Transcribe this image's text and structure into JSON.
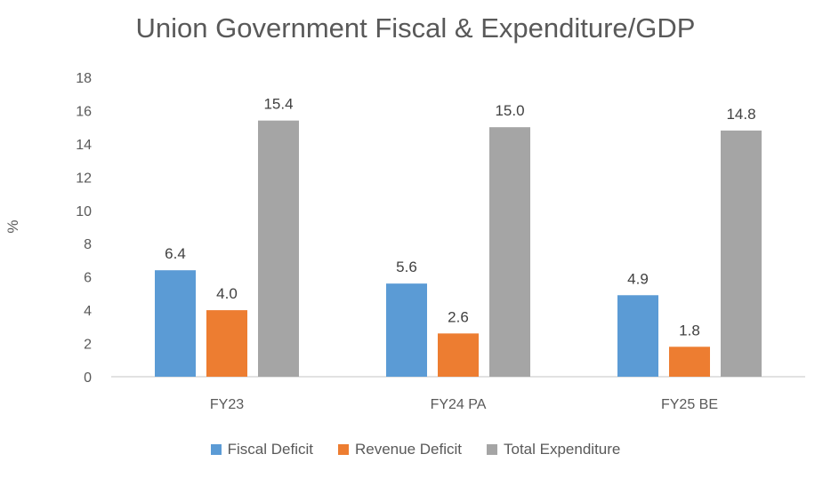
{
  "chart_data": {
    "type": "bar",
    "title": "Union Government Fiscal & Expenditure/GDP",
    "ylabel": "%",
    "xlabel": "",
    "categories": [
      "FY23",
      "FY24 PA",
      "FY25 BE"
    ],
    "series": [
      {
        "name": "Fiscal Deficit",
        "values": [
          6.4,
          5.6,
          4.9
        ],
        "color": "#5B9BD5",
        "labels": [
          "6.4",
          "5.6",
          "4.9"
        ]
      },
      {
        "name": "Revenue Deficit",
        "values": [
          4.0,
          2.6,
          1.8
        ],
        "color": "#ED7D31",
        "labels": [
          "4.0",
          "2.6",
          "1.8"
        ]
      },
      {
        "name": "Total Expenditure",
        "values": [
          15.4,
          15.0,
          14.8
        ],
        "color": "#A5A5A5",
        "labels": [
          "15.4",
          "15.0",
          "14.8"
        ]
      }
    ],
    "ylim": [
      0,
      18
    ],
    "yticks": [
      0,
      2,
      4,
      6,
      8,
      10,
      12,
      14,
      16,
      18
    ],
    "grid": false,
    "legend_position": "bottom"
  }
}
